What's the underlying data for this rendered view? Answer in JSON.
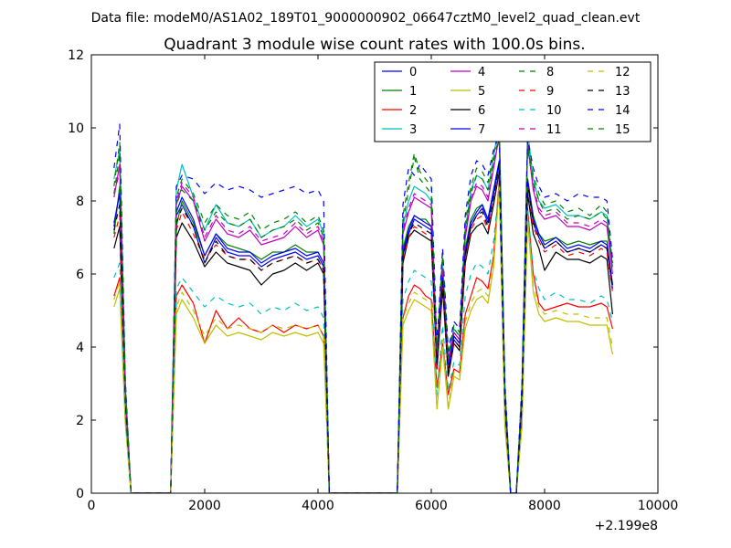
{
  "suptitle": "Data file: modeM0/AS1A02_189T01_9000000902_06647cztM0_level2_quad_clean.evt",
  "chart_data": {
    "type": "line",
    "title": "Quadrant 3 module wise count rates with 100.0s bins.",
    "xlabel": "",
    "ylabel": "",
    "x_offset_label": "+2.199e8",
    "xlim": [
      0,
      10000
    ],
    "ylim": [
      0,
      12
    ],
    "xticks": [
      0,
      2000,
      4000,
      6000,
      8000,
      10000
    ],
    "yticks": [
      0,
      2,
      4,
      6,
      8,
      10,
      12
    ],
    "legend_position": "top-right",
    "legend_columns": 4,
    "time_bins_note": "series values sampled at these x positions (offset from 2.199e8 s)",
    "x": [
      400,
      500,
      600,
      700,
      1000,
      1400,
      1500,
      1600,
      1800,
      2000,
      2200,
      2400,
      2600,
      2800,
      3000,
      3200,
      3400,
      3600,
      3800,
      4000,
      4100,
      4200,
      5000,
      5400,
      5500,
      5600,
      5700,
      5800,
      5900,
      6000,
      6100,
      6200,
      6300,
      6400,
      6500,
      6600,
      6700,
      6800,
      6900,
      7000,
      7100,
      7200,
      7300,
      7400,
      7500,
      7600,
      7700,
      7800,
      7900,
      8000,
      8200,
      8400,
      8600,
      8800,
      9000,
      9100,
      9200
    ],
    "series": [
      {
        "name": "0",
        "color": "#0000ff",
        "style": "solid",
        "values": [
          7.3,
          8.3,
          2.6,
          0,
          0,
          0,
          7.6,
          7.9,
          7.3,
          6.3,
          7.0,
          6.6,
          6.5,
          6.5,
          6.2,
          6.4,
          6.5,
          6.6,
          6.4,
          6.5,
          6.2,
          0,
          0,
          0,
          6.5,
          7.1,
          7.5,
          7.4,
          7.3,
          7.2,
          3.5,
          5.8,
          3.4,
          4.2,
          4.0,
          6.5,
          7.3,
          7.6,
          7.8,
          7.4,
          8.2,
          9.0,
          2.5,
          0,
          0,
          2.5,
          8.5,
          7.4,
          7.0,
          6.7,
          6.9,
          6.6,
          6.7,
          6.6,
          6.8,
          6.7,
          5.6
        ]
      },
      {
        "name": "1",
        "color": "#008000",
        "style": "solid",
        "values": [
          7.1,
          8.4,
          2.5,
          0,
          0,
          0,
          7.3,
          8.0,
          7.4,
          6.5,
          7.1,
          6.8,
          6.7,
          6.6,
          6.4,
          6.6,
          6.6,
          6.8,
          6.6,
          6.6,
          6.3,
          0,
          0,
          0,
          6.7,
          7.3,
          7.6,
          7.5,
          7.5,
          7.3,
          3.6,
          5.9,
          3.5,
          4.3,
          4.1,
          6.7,
          7.5,
          7.8,
          7.9,
          7.5,
          8.3,
          9.1,
          2.5,
          0,
          0,
          2.5,
          8.6,
          7.6,
          7.1,
          6.9,
          7.0,
          6.8,
          6.9,
          6.8,
          6.9,
          6.9,
          5.7
        ]
      },
      {
        "name": "2",
        "color": "#ff0000",
        "style": "solid",
        "values": [
          5.4,
          5.9,
          2.0,
          0,
          0,
          0,
          5.4,
          5.7,
          5.2,
          4.1,
          5.0,
          4.5,
          4.8,
          4.5,
          4.4,
          4.6,
          4.4,
          4.6,
          4.5,
          4.6,
          4.3,
          0,
          0,
          0,
          4.8,
          5.4,
          5.7,
          5.6,
          5.4,
          5.3,
          2.9,
          4.1,
          2.7,
          3.4,
          3.3,
          4.9,
          5.4,
          5.9,
          5.8,
          5.6,
          6.5,
          8.6,
          2.0,
          0,
          0,
          2.0,
          7.8,
          6.0,
          5.2,
          5.0,
          5.1,
          5.2,
          5.1,
          5.1,
          5.2,
          5.1,
          4.5
        ]
      },
      {
        "name": "3",
        "color": "#00bfbf",
        "style": "solid",
        "values": [
          8.6,
          9.4,
          2.9,
          0,
          0,
          0,
          8.3,
          9.0,
          8.1,
          7.2,
          7.9,
          7.4,
          7.3,
          7.5,
          7.0,
          7.2,
          7.3,
          7.6,
          7.3,
          7.5,
          7.1,
          0,
          0,
          0,
          7.3,
          8.0,
          8.4,
          8.3,
          8.2,
          8.0,
          3.9,
          6.3,
          3.7,
          4.5,
          4.3,
          7.2,
          8.3,
          8.7,
          8.6,
          8.3,
          9.2,
          10.2,
          2.8,
          0,
          0,
          2.8,
          9.9,
          8.6,
          8.0,
          7.8,
          7.9,
          7.6,
          7.6,
          7.5,
          7.7,
          7.6,
          6.2
        ]
      },
      {
        "name": "4",
        "color": "#bf00bf",
        "style": "solid",
        "values": [
          8.1,
          9.0,
          2.8,
          0,
          0,
          0,
          7.9,
          8.4,
          8.0,
          6.9,
          7.5,
          7.1,
          7.0,
          7.2,
          6.8,
          6.9,
          7.0,
          7.3,
          7.0,
          7.2,
          6.8,
          0,
          0,
          0,
          7.1,
          7.7,
          8.1,
          8.0,
          7.9,
          7.8,
          3.8,
          6.1,
          3.6,
          4.4,
          4.2,
          7.0,
          8.0,
          8.4,
          8.3,
          8.0,
          8.9,
          9.8,
          2.7,
          0,
          0,
          2.7,
          9.6,
          8.3,
          7.7,
          7.5,
          7.6,
          7.3,
          7.3,
          7.2,
          7.4,
          7.3,
          6.0
        ]
      },
      {
        "name": "5",
        "color": "#bfbf00",
        "style": "solid",
        "values": [
          5.1,
          5.6,
          1.9,
          0,
          0,
          0,
          4.9,
          5.3,
          4.8,
          4.1,
          4.6,
          4.3,
          4.4,
          4.3,
          4.2,
          4.4,
          4.3,
          4.4,
          4.3,
          4.4,
          4.1,
          0,
          0,
          0,
          4.6,
          5.0,
          5.3,
          5.2,
          5.1,
          5.0,
          2.3,
          4.0,
          2.3,
          3.2,
          3.1,
          4.5,
          5.0,
          5.3,
          5.4,
          5.2,
          6.2,
          8.4,
          1.8,
          0,
          0,
          1.8,
          7.5,
          5.5,
          4.9,
          4.7,
          4.8,
          4.7,
          4.7,
          4.6,
          4.6,
          4.6,
          3.8
        ]
      },
      {
        "name": "6",
        "color": "#000000",
        "style": "solid",
        "values": [
          6.7,
          7.3,
          2.4,
          0,
          0,
          0,
          7.0,
          7.4,
          6.9,
          6.2,
          6.6,
          6.3,
          6.2,
          6.1,
          5.7,
          6.0,
          6.1,
          6.3,
          6.1,
          6.3,
          6.0,
          0,
          0,
          0,
          6.3,
          7.0,
          7.2,
          7.1,
          7.0,
          6.9,
          3.4,
          5.6,
          3.2,
          4.1,
          3.9,
          6.3,
          7.1,
          7.3,
          7.4,
          7.1,
          7.9,
          8.8,
          2.4,
          0,
          0,
          2.4,
          8.2,
          7.1,
          6.7,
          6.1,
          6.6,
          6.4,
          6.4,
          6.3,
          6.5,
          6.4,
          4.9
        ]
      },
      {
        "name": "7",
        "color": "#0000ff",
        "style": "solid",
        "values": [
          7.4,
          8.2,
          2.6,
          0,
          0,
          0,
          7.7,
          8.1,
          7.5,
          6.5,
          7.1,
          6.7,
          6.6,
          6.6,
          6.3,
          6.5,
          6.6,
          6.7,
          6.5,
          6.6,
          6.3,
          0,
          0,
          0,
          6.6,
          7.2,
          7.6,
          7.5,
          7.4,
          7.3,
          3.5,
          5.9,
          3.4,
          4.3,
          4.1,
          6.6,
          7.4,
          7.7,
          7.9,
          7.5,
          8.3,
          9.1,
          2.5,
          0,
          0,
          2.5,
          8.6,
          7.5,
          7.1,
          6.8,
          7.0,
          6.7,
          6.8,
          6.7,
          6.9,
          6.8,
          5.7
        ]
      },
      {
        "name": "8",
        "color": "#008000",
        "style": "dashed",
        "values": [
          8.4,
          9.6,
          3.0,
          0,
          0,
          0,
          8.1,
          8.6,
          8.2,
          7.4,
          7.9,
          7.6,
          7.5,
          7.7,
          7.2,
          7.4,
          7.5,
          7.7,
          7.4,
          7.6,
          7.2,
          0,
          0,
          0,
          7.6,
          8.5,
          9.3,
          8.8,
          8.6,
          8.4,
          4.0,
          6.6,
          3.8,
          4.6,
          4.4,
          7.4,
          8.4,
          8.9,
          8.8,
          8.5,
          9.3,
          9.9,
          2.9,
          0,
          0,
          2.9,
          9.6,
          8.7,
          8.2,
          7.9,
          8.0,
          7.7,
          7.8,
          7.6,
          7.9,
          7.7,
          6.3
        ]
      },
      {
        "name": "9",
        "color": "#ff0000",
        "style": "dashed",
        "values": [
          7.0,
          7.6,
          2.4,
          0,
          0,
          0,
          7.2,
          7.7,
          7.1,
          6.4,
          6.8,
          6.5,
          6.4,
          6.4,
          6.1,
          6.3,
          6.4,
          6.5,
          6.3,
          6.4,
          6.1,
          0,
          0,
          0,
          6.4,
          7.0,
          7.3,
          7.2,
          7.1,
          7.0,
          3.4,
          5.7,
          3.3,
          4.1,
          4.0,
          6.4,
          7.2,
          7.5,
          7.6,
          7.2,
          8.0,
          8.9,
          2.4,
          0,
          0,
          2.4,
          8.4,
          7.3,
          6.9,
          6.6,
          6.8,
          6.5,
          6.6,
          6.5,
          6.7,
          6.6,
          5.5
        ]
      },
      {
        "name": "10",
        "color": "#00bfbf",
        "style": "dashed",
        "values": [
          5.9,
          6.3,
          2.1,
          0,
          0,
          0,
          5.6,
          5.9,
          5.5,
          5.1,
          5.4,
          5.2,
          5.1,
          5.2,
          4.9,
          5.1,
          5.0,
          5.2,
          5.0,
          5.1,
          4.8,
          0,
          0,
          0,
          5.3,
          5.8,
          6.1,
          6.0,
          5.9,
          5.8,
          2.7,
          4.6,
          2.8,
          3.6,
          3.5,
          5.4,
          6.0,
          6.3,
          6.2,
          6.0,
          6.9,
          8.4,
          2.0,
          0,
          0,
          2.0,
          7.8,
          6.1,
          5.6,
          5.3,
          5.5,
          5.3,
          5.3,
          5.2,
          5.4,
          5.3,
          4.7
        ]
      },
      {
        "name": "11",
        "color": "#bf00bf",
        "style": "dashed",
        "values": [
          8.2,
          8.8,
          2.8,
          0,
          0,
          0,
          8.0,
          8.5,
          8.1,
          7.0,
          7.6,
          7.2,
          7.1,
          7.3,
          6.9,
          7.0,
          7.1,
          7.4,
          7.1,
          7.3,
          6.9,
          0,
          0,
          0,
          7.2,
          7.8,
          8.2,
          8.1,
          8.0,
          7.9,
          3.8,
          6.2,
          3.6,
          4.4,
          4.2,
          7.1,
          8.1,
          8.5,
          8.4,
          8.1,
          9.0,
          9.7,
          2.7,
          0,
          0,
          2.7,
          9.5,
          8.4,
          7.8,
          7.6,
          7.7,
          7.4,
          7.4,
          7.3,
          7.5,
          7.4,
          6.1
        ]
      },
      {
        "name": "12",
        "color": "#bfbf00",
        "style": "dashed",
        "values": [
          5.3,
          5.8,
          1.9,
          0,
          0,
          0,
          5.1,
          5.5,
          5.0,
          4.3,
          4.8,
          4.5,
          4.6,
          4.5,
          4.4,
          4.6,
          4.5,
          4.6,
          4.5,
          4.6,
          4.3,
          0,
          0,
          0,
          4.8,
          5.2,
          5.5,
          5.4,
          5.3,
          5.2,
          2.4,
          4.2,
          2.4,
          3.3,
          3.2,
          4.7,
          5.2,
          5.5,
          5.6,
          5.4,
          6.4,
          8.5,
          1.9,
          0,
          0,
          1.9,
          7.6,
          5.7,
          5.1,
          4.9,
          5.0,
          4.9,
          4.9,
          4.8,
          4.8,
          4.8,
          4.0
        ]
      },
      {
        "name": "13",
        "color": "#000000",
        "style": "dashed",
        "values": [
          7.2,
          7.9,
          2.5,
          0,
          0,
          0,
          7.4,
          7.8,
          7.3,
          6.3,
          6.9,
          6.5,
          6.4,
          6.4,
          6.1,
          6.3,
          6.4,
          6.5,
          6.3,
          6.4,
          6.1,
          0,
          0,
          0,
          6.5,
          7.1,
          7.4,
          7.3,
          7.2,
          7.1,
          3.5,
          5.8,
          3.3,
          4.2,
          4.0,
          6.5,
          7.3,
          7.6,
          7.7,
          7.3,
          8.1,
          9.0,
          2.5,
          0,
          0,
          2.5,
          8.5,
          7.4,
          7.0,
          6.7,
          6.9,
          6.6,
          6.7,
          6.6,
          6.8,
          6.7,
          5.6
        ]
      },
      {
        "name": "14",
        "color": "#0000ff",
        "style": "dashed",
        "values": [
          8.9,
          10.1,
          3.1,
          0,
          0,
          0,
          8.4,
          8.7,
          8.6,
          8.2,
          8.5,
          8.3,
          8.4,
          8.3,
          8.1,
          8.2,
          8.3,
          8.4,
          8.2,
          8.3,
          8.0,
          0,
          0,
          0,
          7.9,
          8.9,
          8.7,
          9.0,
          8.8,
          8.6,
          4.1,
          6.7,
          3.9,
          4.7,
          4.5,
          7.6,
          8.7,
          9.1,
          9.0,
          8.7,
          9.4,
          9.8,
          3.0,
          0,
          0,
          3.0,
          9.7,
          8.9,
          8.4,
          8.1,
          8.2,
          8.0,
          8.2,
          8.1,
          8.1,
          8.0,
          6.4
        ]
      },
      {
        "name": "15",
        "color": "#008000",
        "style": "dashed",
        "values": [
          8.2,
          9.3,
          2.9,
          0,
          0,
          0,
          7.9,
          8.3,
          8.0,
          7.2,
          7.7,
          7.4,
          7.3,
          7.5,
          7.0,
          7.2,
          7.3,
          7.5,
          7.2,
          7.4,
          7.0,
          0,
          0,
          0,
          7.4,
          8.3,
          9.2,
          8.6,
          8.4,
          8.2,
          3.9,
          6.5,
          3.7,
          4.5,
          4.3,
          7.2,
          8.2,
          8.7,
          8.6,
          8.3,
          9.1,
          9.8,
          2.8,
          0,
          0,
          2.8,
          9.4,
          8.5,
          8.0,
          7.7,
          7.8,
          7.5,
          7.6,
          7.5,
          7.7,
          7.5,
          6.2
        ]
      }
    ]
  }
}
